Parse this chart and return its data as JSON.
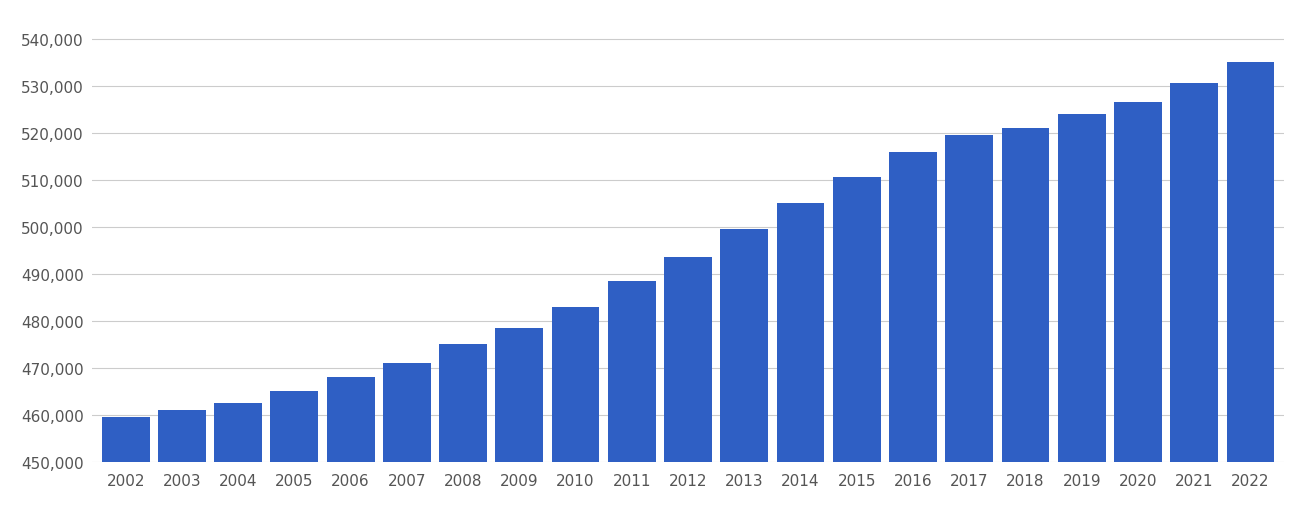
{
  "years": [
    2002,
    2003,
    2004,
    2005,
    2006,
    2007,
    2008,
    2009,
    2010,
    2011,
    2012,
    2013,
    2014,
    2015,
    2016,
    2017,
    2018,
    2019,
    2020,
    2021,
    2022
  ],
  "values": [
    459500,
    461000,
    462500,
    465000,
    468000,
    471000,
    475000,
    478500,
    483000,
    488500,
    493500,
    499500,
    505000,
    510500,
    516000,
    519500,
    521000,
    524000,
    526500,
    530500,
    535000
  ],
  "bar_color": "#2f5fc4",
  "ylim_min": 450000,
  "ylim_max": 544000,
  "ytick_step": 10000,
  "background_color": "#ffffff",
  "grid_color": "#cccccc",
  "tick_label_color": "#555555",
  "bar_width": 0.85
}
